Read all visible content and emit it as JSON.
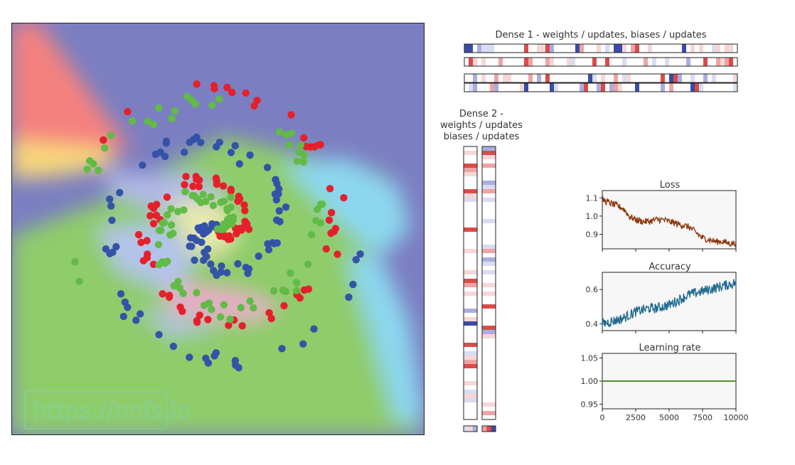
{
  "watermark": "https://nnfs.io",
  "spiral": {
    "colors": {
      "class0": "#e5202b",
      "class1": "#3453a8",
      "class2": "#62bb46",
      "bg_blue": "#7b7fc1",
      "bg_green": "#8fcc6a",
      "bg_red": "#f4817f"
    },
    "arms": 3,
    "points_per_arm": 100
  },
  "dense1": {
    "title": "Dense 1 - weights / updates, biases / updates"
  },
  "dense2": {
    "title_lines": [
      "Dense 2 -",
      "weights / updates",
      "biases / updates"
    ]
  },
  "chart_data": [
    {
      "type": "line",
      "title": "Loss",
      "xlim": [
        0,
        10000
      ],
      "ylim": [
        0.82,
        1.14
      ],
      "yticks": [
        "1.1",
        "1.0",
        "0.9"
      ],
      "ytick_values": [
        1.1,
        1.0,
        0.9
      ],
      "color": "#8b3a0f",
      "x": [
        0,
        300,
        600,
        1000,
        1300,
        1600,
        2000,
        2500,
        3000,
        3500,
        4000,
        4500,
        5000,
        5500,
        6000,
        6500,
        7000,
        7500,
        8000,
        8500,
        9000,
        9500,
        10000
      ],
      "y": [
        1.09,
        1.08,
        1.07,
        1.06,
        1.05,
        1.04,
        1.0,
        0.98,
        0.97,
        0.97,
        0.98,
        0.98,
        0.97,
        0.96,
        0.95,
        0.94,
        0.91,
        0.88,
        0.87,
        0.86,
        0.86,
        0.85,
        0.85
      ]
    },
    {
      "type": "line",
      "title": "Accuracy",
      "xlim": [
        0,
        10000
      ],
      "ylim": [
        0.36,
        0.7
      ],
      "yticks": [
        "0.6",
        "0.4"
      ],
      "ytick_values": [
        0.6,
        0.4
      ],
      "color": "#1f6b8e",
      "x": [
        0,
        500,
        1000,
        1500,
        2000,
        2500,
        3000,
        3500,
        4000,
        4500,
        5000,
        5500,
        6000,
        6500,
        7000,
        7500,
        8000,
        8500,
        9000,
        9500,
        10000
      ],
      "y": [
        0.4,
        0.41,
        0.42,
        0.43,
        0.45,
        0.47,
        0.48,
        0.49,
        0.49,
        0.5,
        0.51,
        0.53,
        0.55,
        0.57,
        0.58,
        0.59,
        0.6,
        0.61,
        0.62,
        0.63,
        0.64
      ]
    },
    {
      "type": "line",
      "title": "Learning rate",
      "xlim": [
        0,
        10000
      ],
      "ylim": [
        0.94,
        1.06
      ],
      "yticks": [
        "1.05",
        "1.00",
        "0.95"
      ],
      "ytick_values": [
        1.05,
        1.0,
        0.95
      ],
      "xticks": [
        "0",
        "2500",
        "5000",
        "7500",
        "10000"
      ],
      "xtick_values": [
        0,
        2500,
        5000,
        7500,
        10000
      ],
      "color": "#4e8f2f",
      "x": [
        0,
        10000
      ],
      "y": [
        1.0,
        1.0
      ]
    }
  ]
}
